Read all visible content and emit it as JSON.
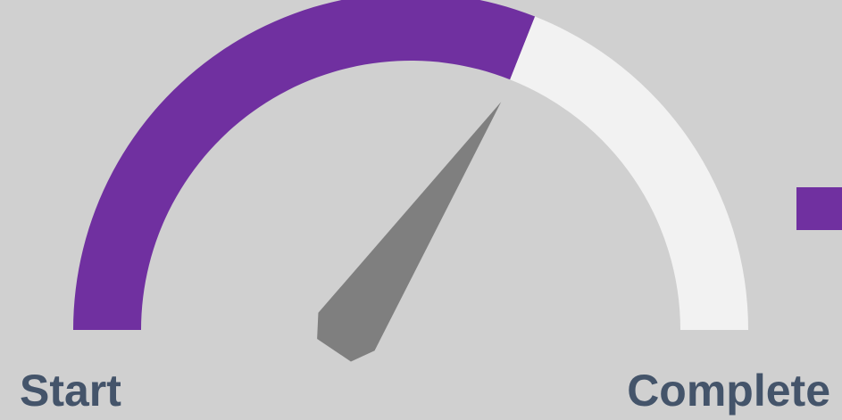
{
  "chart_data": {
    "type": "gauge",
    "value": 62,
    "ylim": [
      0,
      100
    ],
    "start_label": "Start",
    "end_label": "Complete",
    "color": "#7030a0",
    "rest_color": "#f2f2f2",
    "needle_color": "#7f7f7f"
  }
}
